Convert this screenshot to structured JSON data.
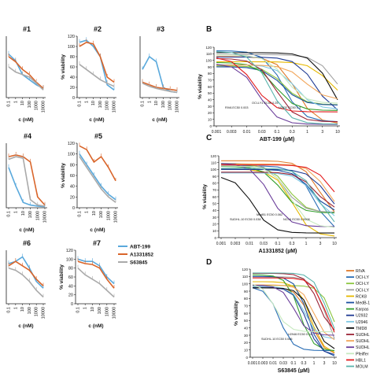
{
  "colors": {
    "ABT-199": "#5aa9dc",
    "A1331852": "#d9652a",
    "S63845": "#aaaaaa"
  },
  "legend_small": [
    "ABT-199",
    "A1331852",
    "S63845"
  ],
  "small_xticks": [
    "0.1",
    "1",
    "10",
    "100",
    "1000",
    "10000"
  ],
  "small_xlabel": "c (nM)",
  "small_ylabel": "% viability",
  "small_yticks": [
    "0",
    "20",
    "40",
    "60",
    "80",
    "100",
    "120"
  ],
  "panel_labels": {
    "B": "B",
    "C": "C",
    "D": "D"
  },
  "big_xticks": [
    "0.001",
    "0.003",
    "0.01",
    "0.03",
    "0.1",
    "0.3",
    "1",
    "3",
    "10"
  ],
  "big_yticks": [
    "0",
    "10",
    "20",
    "30",
    "40",
    "50",
    "60",
    "70",
    "80",
    "90",
    "100",
    "110",
    "120"
  ],
  "big_ylabel": "% viability",
  "cell_lines": [
    "RIVA",
    "OCI-LY",
    "OCI-LY",
    "OCI-LY",
    "RCK8",
    "MedB-1",
    "Karpas",
    "U2932",
    "U2946",
    "TMD8",
    "SUDHL",
    "SUDHL",
    "SUDHL",
    "Pfeiffer",
    "HBL1",
    "MOLM"
  ],
  "line_colors": [
    "#e07b2a",
    "#2c6fb6",
    "#8cc63f",
    "#a0a0a0",
    "#e6b800",
    "#1a4fa0",
    "#33a02c",
    "#1f3a93",
    "#7ec8e3",
    "#111111",
    "#9b2335",
    "#f2a65a",
    "#6a3d9a",
    "#c7e9c0",
    "#e31a1c",
    "#5ab4ac"
  ],
  "chart_data": [
    {
      "type": "line",
      "panel": "#1",
      "xlabel": "c (nM)",
      "ylabel": "% viability",
      "categories": [
        "0.1",
        "1",
        "10",
        "100",
        "1000",
        "10000"
      ],
      "series": [
        {
          "name": "ABT-199",
          "values": [
            85,
            72,
            45,
            35,
            25,
            18
          ]
        },
        {
          "name": "A1331852",
          "values": [
            80,
            70,
            55,
            45,
            30,
            18
          ]
        },
        {
          "name": "S63845",
          "values": [
            60,
            50,
            45,
            40,
            28,
            15
          ]
        }
      ]
    },
    {
      "type": "line",
      "panel": "#2",
      "xlabel": "c (nM)",
      "ylabel": "% viability",
      "categories": [
        "0.1",
        "1",
        "10",
        "100",
        "1000",
        "10000"
      ],
      "series": [
        {
          "name": "ABT-199",
          "values": [
            108,
            112,
            100,
            80,
            25,
            15
          ]
        },
        {
          "name": "A1331852",
          "values": [
            100,
            108,
            105,
            80,
            40,
            30
          ]
        },
        {
          "name": "S63845",
          "values": [
            65,
            55,
            45,
            35,
            28,
            22
          ]
        }
      ]
    },
    {
      "type": "line",
      "panel": "#3",
      "xlabel": "c (nM)",
      "ylabel": "% viability",
      "categories": [
        "0.1",
        "1",
        "10",
        "100",
        "1000",
        "10000"
      ],
      "series": [
        {
          "name": "ABT-199",
          "values": [
            55,
            80,
            70,
            20,
            12,
            10
          ]
        },
        {
          "name": "A1331852",
          "values": [
            30,
            25,
            20,
            18,
            16,
            14
          ]
        },
        {
          "name": "S63845",
          "values": [
            28,
            22,
            18,
            15,
            12,
            10
          ]
        }
      ]
    },
    {
      "type": "line",
      "panel": "#4",
      "xlabel": "c (nM)",
      "ylabel": "% viability",
      "categories": [
        "0.1",
        "1",
        "10",
        "100",
        "1000",
        "10000"
      ],
      "series": [
        {
          "name": "ABT-199",
          "values": [
            75,
            40,
            10,
            5,
            3,
            2
          ]
        },
        {
          "name": "A1331852",
          "values": [
            95,
            98,
            95,
            85,
            20,
            5
          ]
        },
        {
          "name": "S63845",
          "values": [
            90,
            95,
            92,
            15,
            5,
            3
          ]
        }
      ]
    },
    {
      "type": "line",
      "panel": "#5",
      "xlabel": "c (nM)",
      "ylabel": "% viability",
      "categories": [
        "0.1",
        "1",
        "10",
        "100",
        "1000",
        "10000"
      ],
      "series": [
        {
          "name": "ABT-199",
          "values": [
            100,
            80,
            60,
            40,
            25,
            15
          ]
        },
        {
          "name": "A1331852",
          "values": [
            115,
            108,
            85,
            95,
            75,
            50
          ]
        },
        {
          "name": "S63845",
          "values": [
            95,
            75,
            55,
            35,
            20,
            10
          ]
        }
      ]
    },
    {
      "type": "line",
      "panel": "#6",
      "xlabel": "c (nM)",
      "ylabel": "% viability",
      "categories": [
        "0.1",
        "1",
        "10",
        "100",
        "1000",
        "10000"
      ],
      "series": [
        {
          "name": "ABT-199",
          "values": [
            90,
            95,
            105,
            80,
            50,
            35
          ]
        },
        {
          "name": "A1331852",
          "values": [
            85,
            95,
            85,
            75,
            55,
            40
          ]
        },
        {
          "name": "S63845",
          "values": [
            80,
            75,
            65,
            50,
            30,
            15
          ]
        }
      ]
    },
    {
      "type": "line",
      "panel": "#7",
      "xlabel": "c (nM)",
      "ylabel": "% viability",
      "categories": [
        "0.1",
        "1",
        "10",
        "100",
        "1000",
        "10000"
      ],
      "series": [
        {
          "name": "ABT-199",
          "values": [
            100,
            95,
            95,
            85,
            60,
            45
          ]
        },
        {
          "name": "A1331852",
          "values": [
            95,
            90,
            88,
            80,
            55,
            35
          ]
        },
        {
          "name": "S63845",
          "values": [
            80,
            65,
            55,
            45,
            30,
            15
          ]
        }
      ]
    },
    {
      "type": "line",
      "panel": "B",
      "xlabel": "ABT-199 (µM)",
      "ylabel": "% viability",
      "annotations": [
        "RIVA EC50 0.003",
        "OCI-LY1 EC50 0.25",
        "U2932 EC50 1.3"
      ]
    },
    {
      "type": "line",
      "panel": "C",
      "xlabel": "A1331852 (µM)",
      "ylabel": "% viability",
      "annotations": [
        "SUDHL-10 EC50 0.038",
        "MedB1 EC50 0.062",
        "NCI-K EC50 0.0008"
      ]
    },
    {
      "type": "line",
      "panel": "D",
      "xlabel": "S63845 (µM)",
      "ylabel": "% viability",
      "annotations": [
        "SUDHL-10 EC50 0.066",
        "U2946 EC50 0.14"
      ]
    }
  ]
}
